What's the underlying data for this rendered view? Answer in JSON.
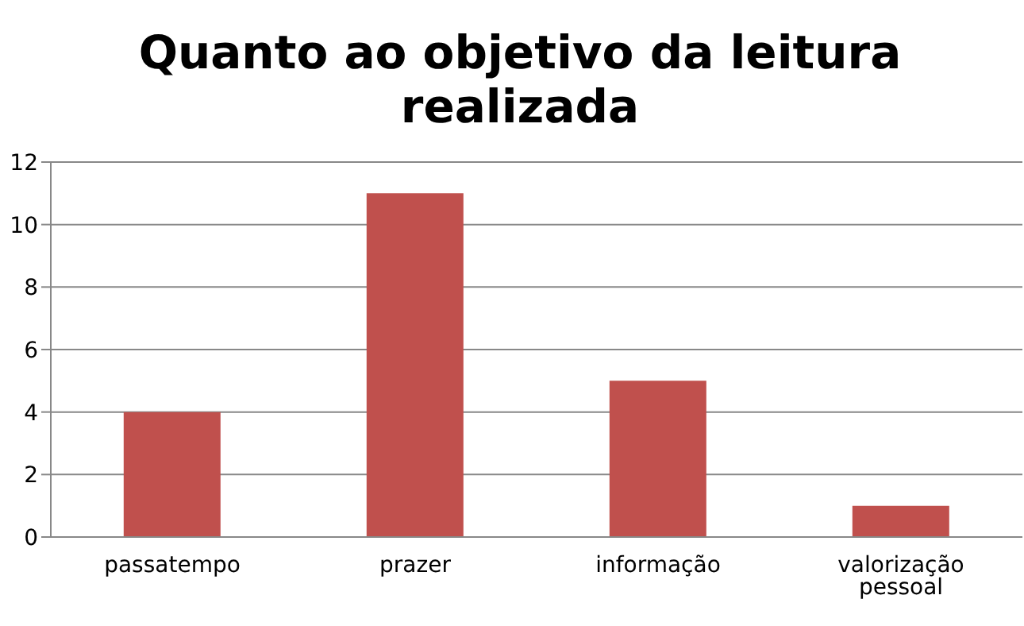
{
  "chart_data": {
    "type": "bar",
    "title": "Quanto ao objetivo da leitura realizada",
    "categories": [
      "passatempo",
      "prazer",
      "informação",
      "valorização pessoal"
    ],
    "values": [
      4,
      11,
      5,
      1
    ],
    "color": "#c0504d",
    "ylim": [
      0,
      12
    ],
    "yticks": [
      0,
      2,
      4,
      6,
      8,
      10,
      12
    ],
    "grid": "y",
    "legend": false
  }
}
